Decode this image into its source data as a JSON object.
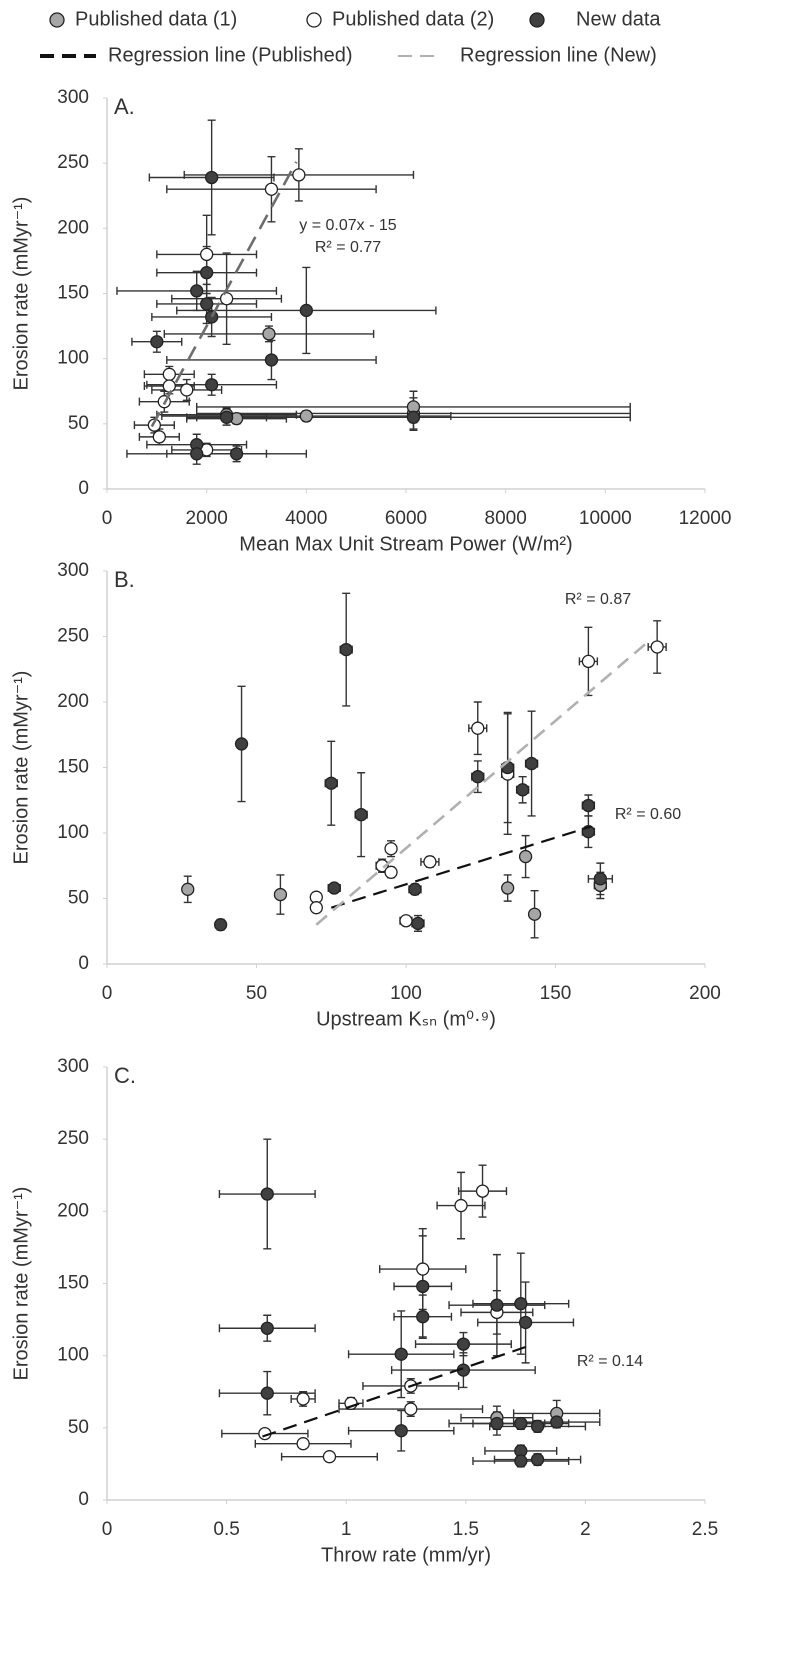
{
  "legend": {
    "markers": [
      {
        "name": "Published data (1)",
        "fill": "#a6a6a6"
      },
      {
        "name": "Published data (2)",
        "fill": "#ffffff"
      },
      {
        "name": "New data",
        "fill": "#404040"
      }
    ],
    "lines": [
      {
        "name": "Regression line (Published)",
        "color": "#111111",
        "dash": "14,8"
      },
      {
        "name": "Regression line (New)",
        "color": "#b0b0b0",
        "dash": "14,8"
      }
    ]
  },
  "chart_data": [
    {
      "type": "scatter",
      "panel_label": "A.",
      "xlabel": "Mean Max Unit Stream Power (W/m²)",
      "ylabel": "Erosion rate (mMyr⁻¹)",
      "xlim": [
        0,
        12000
      ],
      "ylim": [
        0,
        300
      ],
      "xticks": [
        0,
        2000,
        4000,
        6000,
        8000,
        10000,
        12000
      ],
      "yticks": [
        0,
        50,
        100,
        150,
        200,
        250,
        300
      ],
      "series": [
        {
          "fill": "#a6a6a6",
          "x": [
            3250,
            2400,
            2600,
            4000,
            6150,
            6150
          ],
          "y": [
            119,
            57,
            54,
            56,
            58,
            63
          ],
          "xerr": [
            2100,
            1400,
            1000,
            2900,
            4350,
            4350
          ],
          "yerr": [
            6,
            5,
            4,
            4,
            12,
            12
          ]
        },
        {
          "fill": "#ffffff",
          "x": [
            3300,
            3850,
            2000,
            2400,
            1600,
            1250,
            1250,
            1150,
            950,
            1050,
            2000
          ],
          "y": [
            230,
            241,
            180,
            146,
            76,
            88,
            79,
            67,
            49,
            40,
            30
          ],
          "xerr": [
            2100,
            2300,
            1000,
            1100,
            700,
            500,
            500,
            500,
            400,
            400,
            700
          ],
          "yerr": [
            25,
            20,
            30,
            35,
            8,
            6,
            6,
            8,
            6,
            6,
            5
          ]
        },
        {
          "fill": "#404040",
          "x": [
            2100,
            2000,
            1800,
            2000,
            2100,
            1000,
            4000,
            3300,
            2100,
            1800,
            1800,
            2600,
            2400,
            6150
          ],
          "y": [
            239,
            166,
            152,
            142,
            132,
            113,
            137,
            99,
            80,
            34,
            27,
            27,
            55,
            55
          ],
          "xerr": [
            1250,
            1000,
            1600,
            1000,
            1200,
            500,
            2600,
            2100,
            1300,
            1000,
            1400,
            1400,
            800,
            4350
          ],
          "yerr": [
            44,
            20,
            15,
            15,
            15,
            8,
            33,
            15,
            8,
            8,
            8,
            6,
            6,
            10
          ]
        }
      ],
      "regressions": [
        {
          "color": "#6d6d6d",
          "dash": "16,9",
          "x": [
            900,
            3800
          ],
          "y": [
            48,
            251
          ]
        }
      ],
      "annotations": [
        "y = 0.07x - 15",
        "R² = 0.77"
      ]
    },
    {
      "type": "scatter",
      "panel_label": "B.",
      "xlabel": "Upstream Kₛₙ (m⁰·⁹)",
      "ylabel": "Erosion rate (mMyr⁻¹)",
      "xlim": [
        0,
        200
      ],
      "ylim": [
        0,
        300
      ],
      "xticks": [
        0,
        50,
        100,
        150,
        200
      ],
      "yticks": [
        0,
        50,
        100,
        150,
        200,
        250,
        300
      ],
      "series": [
        {
          "fill": "#a6a6a6",
          "x": [
            27,
            58,
            140,
            143,
            134,
            165
          ],
          "y": [
            57,
            53,
            82,
            38,
            58,
            60
          ],
          "xerr": [
            1,
            1,
            1,
            1,
            1.5,
            2
          ],
          "yerr": [
            10,
            15,
            16,
            18,
            10,
            10
          ]
        },
        {
          "fill": "#ffffff",
          "x": [
            70,
            70,
            92,
            95,
            95,
            108,
            100,
            124,
            134,
            161,
            184
          ],
          "y": [
            51,
            43,
            75,
            88,
            70,
            78,
            33,
            180,
            145,
            231,
            242
          ],
          "xerr": [
            1,
            1,
            2,
            1.5,
            1.5,
            3,
            2,
            3,
            2,
            3,
            3
          ],
          "yerr": [
            3,
            3,
            5,
            6,
            4,
            4,
            2,
            20,
            46,
            26,
            20
          ]
        },
        {
          "fill": "#404040",
          "x": [
            38,
            45,
            75,
            80,
            85,
            76,
            103,
            104,
            124,
            134,
            139,
            142,
            161,
            161,
            165
          ],
          "y": [
            30,
            168,
            138,
            240,
            114,
            58,
            57,
            31,
            143,
            150,
            133,
            153,
            101,
            121,
            65
          ],
          "xerr": [
            1,
            1,
            2,
            2,
            2,
            2,
            2,
            2,
            2,
            2,
            2,
            2,
            2,
            2,
            4
          ],
          "yerr": [
            4,
            44,
            32,
            43,
            32,
            3,
            4,
            6,
            12,
            42,
            10,
            40,
            12,
            8,
            12
          ]
        }
      ],
      "regressions": [
        {
          "color": "#111111",
          "dash": "14,8",
          "x": [
            75,
            162
          ],
          "y": [
            43,
            105
          ]
        },
        {
          "color": "#b0b0b0",
          "dash": "14,8",
          "x": [
            70,
            182
          ],
          "y": [
            30,
            248
          ]
        }
      ],
      "annotations": [
        "R² = 0.87",
        "R² = 0.60"
      ]
    },
    {
      "type": "scatter",
      "panel_label": "C.",
      "xlabel": "Throw rate (mm/yr)",
      "ylabel": "Erosion rate (mMyr⁻¹)",
      "xlim": [
        0,
        2.5
      ],
      "ylim": [
        0,
        300
      ],
      "xticks": [
        0,
        0.5,
        1,
        1.5,
        2,
        2.5
      ],
      "yticks": [
        0,
        50,
        100,
        150,
        200,
        250,
        300
      ],
      "series": [
        {
          "fill": "#a6a6a6",
          "x": [
            1.88,
            1.63
          ],
          "y": [
            60,
            57
          ],
          "xerr": [
            0.18,
            0.15
          ],
          "yerr": [
            9,
            8
          ]
        },
        {
          "fill": "#ffffff",
          "x": [
            1.57,
            1.48,
            1.32,
            1.63,
            0.82,
            1.02,
            1.27,
            1.27,
            0.66,
            0.82,
            0.93
          ],
          "y": [
            214,
            204,
            160,
            130,
            70,
            67,
            79,
            63,
            46,
            39,
            30
          ],
          "xerr": [
            0.1,
            0.1,
            0.18,
            0.15,
            0.05,
            0.05,
            0.2,
            0.3,
            0.18,
            0.2,
            0.2
          ],
          "yerr": [
            18,
            23,
            28,
            15,
            5,
            4,
            5,
            5,
            3,
            3,
            3
          ]
        },
        {
          "fill": "#404040",
          "x": [
            0.67,
            0.67,
            0.67,
            1.32,
            1.32,
            1.23,
            1.23,
            1.49,
            1.49,
            1.63,
            1.73,
            1.75,
            1.63,
            1.73,
            1.8,
            1.88,
            1.73,
            1.73,
            1.8
          ],
          "y": [
            212,
            119,
            74,
            148,
            127,
            101,
            48,
            108,
            90,
            135,
            136,
            123,
            53,
            53,
            51,
            54,
            34,
            27,
            28
          ],
          "xerr": [
            0.2,
            0.2,
            0.2,
            0.12,
            0.12,
            0.22,
            0.22,
            0.2,
            0.3,
            0.2,
            0.2,
            0.2,
            0.2,
            0.2,
            0.2,
            0.18,
            0.15,
            0.2,
            0.18
          ],
          "yerr": [
            38,
            9,
            15,
            35,
            15,
            30,
            14,
            8,
            12,
            35,
            35,
            28,
            8,
            4,
            4,
            4,
            4,
            4,
            4
          ]
        }
      ],
      "regressions": [
        {
          "color": "#111111",
          "dash": "14,8",
          "x": [
            0.65,
            1.75
          ],
          "y": [
            44,
            106
          ]
        }
      ],
      "annotations": [
        "R² = 0.14"
      ]
    }
  ]
}
